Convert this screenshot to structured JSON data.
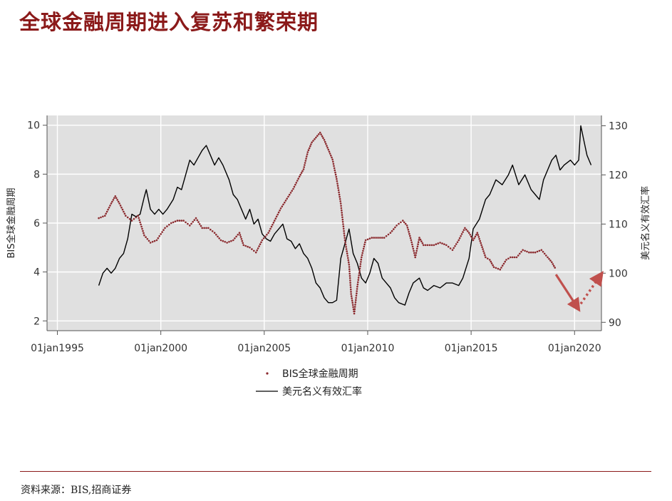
{
  "title": "全球金融周期进入复苏和繁荣期",
  "source": "资料来源：BIS,招商证券",
  "colors": {
    "title": "#8b1a1a",
    "bis_series": "#8b2a2e",
    "usd_series": "#000000",
    "plot_bg": "#e0e0e0",
    "arrow": "#c0504d"
  },
  "chart_data": {
    "type": "line",
    "title": "",
    "xlabel": "",
    "ylabel_left": "BIS全球金融周期",
    "ylabel_right": "美元名义有效汇率",
    "x_ticks": [
      "01jan1995",
      "01jan2000",
      "01jan2005",
      "01jan2010",
      "01jan2015",
      "01jan2020"
    ],
    "x_range": [
      1994.5,
      2021.3
    ],
    "ylim_left": [
      1.6,
      10.4
    ],
    "ylim_right": [
      88.3,
      132.1
    ],
    "y_ticks_left": [
      2,
      4,
      6,
      8,
      10
    ],
    "y_ticks_right": [
      90,
      100,
      110,
      120,
      130
    ],
    "grid": true,
    "legend_position": "bottom",
    "series": [
      {
        "name": "BIS全球金融周期",
        "axis": "left",
        "style": "dotted",
        "points": [
          [
            1997.0,
            6.2
          ],
          [
            1997.3,
            6.3
          ],
          [
            1997.6,
            6.8
          ],
          [
            1997.8,
            7.1
          ],
          [
            1998.0,
            6.8
          ],
          [
            1998.3,
            6.3
          ],
          [
            1998.6,
            6.1
          ],
          [
            1998.9,
            6.3
          ],
          [
            1999.2,
            5.5
          ],
          [
            1999.5,
            5.2
          ],
          [
            1999.8,
            5.3
          ],
          [
            2000.2,
            5.8
          ],
          [
            2000.5,
            6.0
          ],
          [
            2000.8,
            6.1
          ],
          [
            2001.1,
            6.1
          ],
          [
            2001.4,
            5.9
          ],
          [
            2001.7,
            6.2
          ],
          [
            2002.0,
            5.8
          ],
          [
            2002.3,
            5.8
          ],
          [
            2002.6,
            5.6
          ],
          [
            2002.9,
            5.3
          ],
          [
            2003.2,
            5.2
          ],
          [
            2003.5,
            5.3
          ],
          [
            2003.8,
            5.6
          ],
          [
            2004.0,
            5.1
          ],
          [
            2004.3,
            5.0
          ],
          [
            2004.6,
            4.8
          ],
          [
            2004.9,
            5.3
          ],
          [
            2005.2,
            5.6
          ],
          [
            2005.5,
            6.1
          ],
          [
            2005.8,
            6.6
          ],
          [
            2006.1,
            7.0
          ],
          [
            2006.4,
            7.4
          ],
          [
            2006.7,
            7.9
          ],
          [
            2006.9,
            8.2
          ],
          [
            2007.1,
            8.9
          ],
          [
            2007.3,
            9.3
          ],
          [
            2007.5,
            9.5
          ],
          [
            2007.7,
            9.7
          ],
          [
            2007.9,
            9.4
          ],
          [
            2008.1,
            9.0
          ],
          [
            2008.3,
            8.6
          ],
          [
            2008.5,
            7.8
          ],
          [
            2008.7,
            6.8
          ],
          [
            2008.9,
            5.3
          ],
          [
            2009.1,
            4.3
          ],
          [
            2009.2,
            3.1
          ],
          [
            2009.35,
            2.3
          ],
          [
            2009.5,
            3.4
          ],
          [
            2009.7,
            4.6
          ],
          [
            2009.9,
            5.3
          ],
          [
            2010.2,
            5.4
          ],
          [
            2010.5,
            5.4
          ],
          [
            2010.8,
            5.4
          ],
          [
            2011.1,
            5.6
          ],
          [
            2011.4,
            5.9
          ],
          [
            2011.7,
            6.1
          ],
          [
            2011.9,
            5.9
          ],
          [
            2012.1,
            5.3
          ],
          [
            2012.3,
            4.6
          ],
          [
            2012.5,
            5.4
          ],
          [
            2012.7,
            5.1
          ],
          [
            2012.9,
            5.1
          ],
          [
            2013.2,
            5.1
          ],
          [
            2013.5,
            5.2
          ],
          [
            2013.8,
            5.1
          ],
          [
            2014.1,
            4.9
          ],
          [
            2014.4,
            5.3
          ],
          [
            2014.7,
            5.8
          ],
          [
            2014.9,
            5.6
          ],
          [
            2015.1,
            5.3
          ],
          [
            2015.3,
            5.6
          ],
          [
            2015.5,
            5.1
          ],
          [
            2015.7,
            4.6
          ],
          [
            2015.9,
            4.5
          ],
          [
            2016.1,
            4.2
          ],
          [
            2016.4,
            4.1
          ],
          [
            2016.7,
            4.5
          ],
          [
            2016.9,
            4.6
          ],
          [
            2017.2,
            4.6
          ],
          [
            2017.5,
            4.9
          ],
          [
            2017.8,
            4.8
          ],
          [
            2018.1,
            4.8
          ],
          [
            2018.4,
            4.9
          ],
          [
            2018.7,
            4.6
          ],
          [
            2018.9,
            4.4
          ],
          [
            2019.1,
            4.1
          ]
        ]
      },
      {
        "name": "美元名义有效汇率",
        "axis": "right",
        "style": "solid",
        "points": [
          [
            1997.0,
            97.5
          ],
          [
            1997.2,
            100.0
          ],
          [
            1997.4,
            101.0
          ],
          [
            1997.6,
            100.0
          ],
          [
            1997.8,
            101.0
          ],
          [
            1998.0,
            103.0
          ],
          [
            1998.2,
            104.0
          ],
          [
            1998.4,
            107.0
          ],
          [
            1998.6,
            112.0
          ],
          [
            1998.8,
            111.5
          ],
          [
            1999.0,
            112.0
          ],
          [
            1999.2,
            115.5
          ],
          [
            1999.3,
            117.0
          ],
          [
            1999.5,
            113.0
          ],
          [
            1999.7,
            112.0
          ],
          [
            1999.9,
            113.0
          ],
          [
            2000.1,
            112.0
          ],
          [
            2000.3,
            113.0
          ],
          [
            2000.6,
            115.0
          ],
          [
            2000.8,
            117.5
          ],
          [
            2001.0,
            117.0
          ],
          [
            2001.2,
            120.0
          ],
          [
            2001.4,
            123.0
          ],
          [
            2001.6,
            122.0
          ],
          [
            2001.8,
            123.5
          ],
          [
            2002.0,
            125.0
          ],
          [
            2002.2,
            126.0
          ],
          [
            2002.4,
            124.0
          ],
          [
            2002.6,
            122.0
          ],
          [
            2002.8,
            123.5
          ],
          [
            2003.0,
            122.0
          ],
          [
            2003.3,
            119.0
          ],
          [
            2003.5,
            116.0
          ],
          [
            2003.7,
            115.0
          ],
          [
            2003.9,
            113.0
          ],
          [
            2004.1,
            111.0
          ],
          [
            2004.3,
            113.0
          ],
          [
            2004.5,
            110.0
          ],
          [
            2004.7,
            111.0
          ],
          [
            2004.9,
            108.0
          ],
          [
            2005.1,
            107.0
          ],
          [
            2005.3,
            106.5
          ],
          [
            2005.5,
            108.0
          ],
          [
            2005.7,
            109.0
          ],
          [
            2005.9,
            110.0
          ],
          [
            2006.1,
            107.0
          ],
          [
            2006.3,
            106.5
          ],
          [
            2006.5,
            105.0
          ],
          [
            2006.7,
            106.0
          ],
          [
            2006.9,
            104.0
          ],
          [
            2007.1,
            103.0
          ],
          [
            2007.3,
            101.0
          ],
          [
            2007.5,
            98.0
          ],
          [
            2007.7,
            97.0
          ],
          [
            2007.9,
            95.0
          ],
          [
            2008.1,
            94.0
          ],
          [
            2008.3,
            94.0
          ],
          [
            2008.5,
            94.5
          ],
          [
            2008.7,
            103.0
          ],
          [
            2008.9,
            106.0
          ],
          [
            2009.1,
            109.0
          ],
          [
            2009.3,
            104.0
          ],
          [
            2009.5,
            102.0
          ],
          [
            2009.7,
            99.0
          ],
          [
            2009.9,
            98.0
          ],
          [
            2010.1,
            100.0
          ],
          [
            2010.3,
            103.0
          ],
          [
            2010.5,
            102.0
          ],
          [
            2010.7,
            99.0
          ],
          [
            2010.9,
            98.0
          ],
          [
            2011.1,
            97.0
          ],
          [
            2011.3,
            95.0
          ],
          [
            2011.5,
            94.0
          ],
          [
            2011.8,
            93.5
          ],
          [
            2012.0,
            96.0
          ],
          [
            2012.2,
            98.0
          ],
          [
            2012.5,
            99.0
          ],
          [
            2012.7,
            97.0
          ],
          [
            2012.9,
            96.5
          ],
          [
            2013.2,
            97.5
          ],
          [
            2013.5,
            97.0
          ],
          [
            2013.8,
            98.0
          ],
          [
            2014.1,
            98.0
          ],
          [
            2014.4,
            97.5
          ],
          [
            2014.6,
            99.0
          ],
          [
            2014.9,
            103.0
          ],
          [
            2015.1,
            109.0
          ],
          [
            2015.4,
            111.0
          ],
          [
            2015.7,
            115.0
          ],
          [
            2015.9,
            116.0
          ],
          [
            2016.2,
            119.0
          ],
          [
            2016.5,
            118.0
          ],
          [
            2016.8,
            120.0
          ],
          [
            2017.0,
            122.0
          ],
          [
            2017.3,
            118.0
          ],
          [
            2017.6,
            120.0
          ],
          [
            2017.9,
            117.0
          ],
          [
            2018.1,
            116.0
          ],
          [
            2018.3,
            115.0
          ],
          [
            2018.5,
            119.0
          ],
          [
            2018.7,
            121.0
          ],
          [
            2018.9,
            123.0
          ],
          [
            2019.1,
            124.0
          ],
          [
            2019.3,
            121.0
          ],
          [
            2019.5,
            122.0
          ],
          [
            2019.8,
            123.0
          ],
          [
            2020.0,
            122.0
          ],
          [
            2020.2,
            123.0
          ],
          [
            2020.3,
            130.0
          ],
          [
            2020.5,
            126.0
          ],
          [
            2020.6,
            124.0
          ],
          [
            2020.8,
            122.0
          ]
        ]
      }
    ],
    "arrows": [
      {
        "from": [
          2019.1,
          3.9
        ],
        "to": [
          2020.1,
          2.6
        ],
        "style": "solid"
      },
      {
        "from": [
          2020.3,
          2.7
        ],
        "to": [
          2021.2,
          3.8
        ],
        "style": "dotted"
      }
    ]
  }
}
